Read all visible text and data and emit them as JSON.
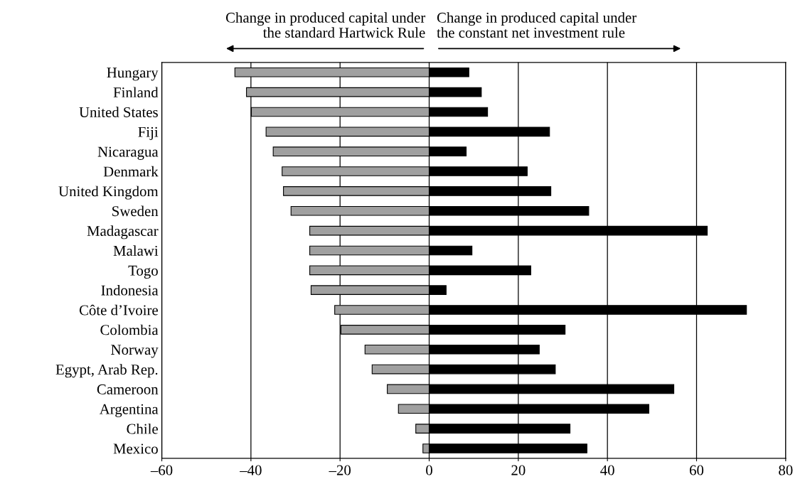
{
  "chart_data": {
    "type": "bar",
    "orientation": "horizontal",
    "stacked": true,
    "categories": [
      "Hungary",
      "Finland",
      "United States",
      "Fiji",
      "Nicaragua",
      "Denmark",
      "United Kingdom",
      "Sweden",
      "Madagascar",
      "Malawi",
      "Togo",
      "Indonesia",
      "Côte d’Ivoire",
      "Colombia",
      "Norway",
      "Egypt, Arab Rep.",
      "Cameroon",
      "Argentina",
      "Chile",
      "Mexico"
    ],
    "series": [
      {
        "color": "#a0a0a0",
        "values": [
          -43.6,
          -41.0,
          -39.9,
          -36.6,
          -35.0,
          -33.0,
          -32.7,
          -31.0,
          -26.8,
          -26.8,
          -26.8,
          -26.5,
          -21.2,
          -19.8,
          -14.4,
          -12.8,
          -9.4,
          -6.9,
          -3.0,
          -1.4
        ]
      },
      {
        "color": "#000000",
        "values": [
          8.9,
          11.7,
          13.1,
          27.0,
          8.3,
          22.0,
          27.3,
          35.8,
          62.4,
          9.6,
          22.8,
          3.8,
          71.2,
          30.5,
          24.7,
          28.3,
          54.9,
          49.3,
          31.6,
          35.4
        ]
      }
    ],
    "xlim": [
      -60,
      80
    ],
    "xticks": [
      {
        "value": -60,
        "label": "–60"
      },
      {
        "value": -40,
        "label": "–40"
      },
      {
        "value": -20,
        "label": "–20"
      },
      0,
      20,
      40,
      60,
      80
    ],
    "grid": "x",
    "annotations": [
      "Change in produced capital under\nthe standard Hartwick Rule",
      "Change in produced capital under\nthe constant net investment rule"
    ]
  }
}
